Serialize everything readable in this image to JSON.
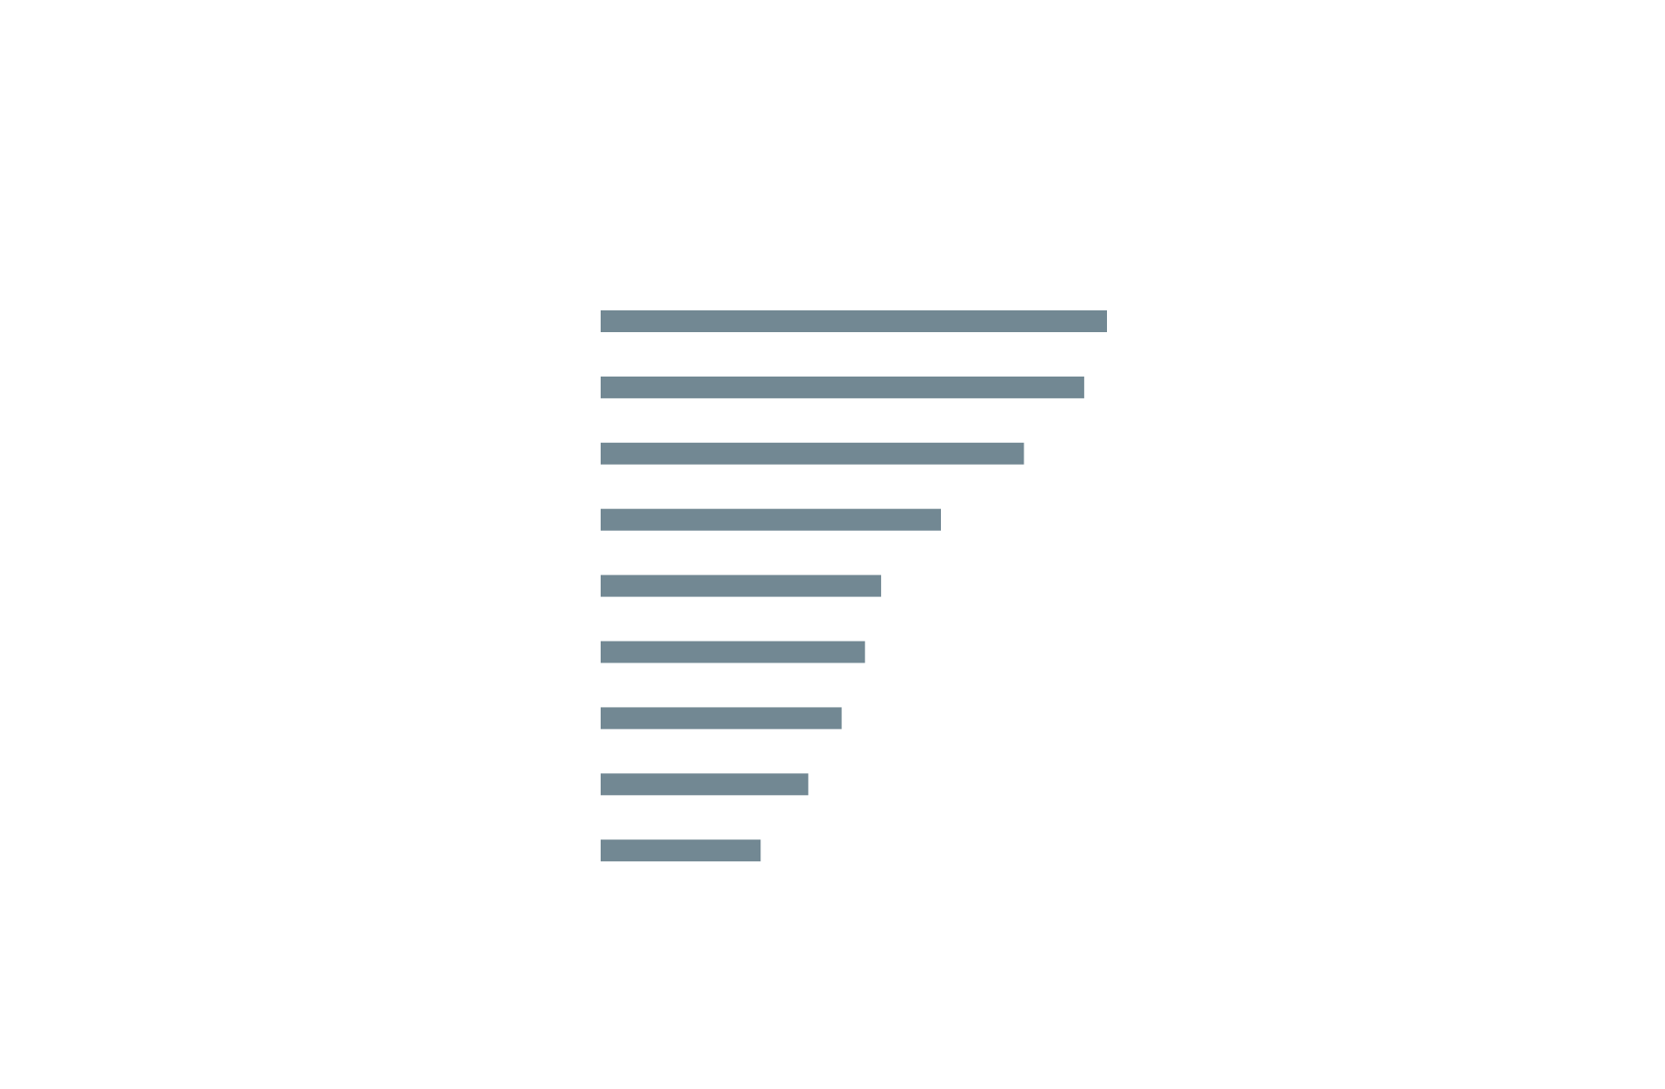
{
  "chart_data": {
    "type": "bar",
    "orientation": "horizontal",
    "values": [
      100,
      95.5,
      83.6,
      67.2,
      55.4,
      52.2,
      47.6,
      41.0,
      31.6
    ],
    "xlim": [
      0,
      100
    ],
    "grid": false,
    "legend": "none",
    "axis_labels": "none",
    "colors": {
      "bar": "#728893",
      "background": "#ffffff"
    }
  }
}
